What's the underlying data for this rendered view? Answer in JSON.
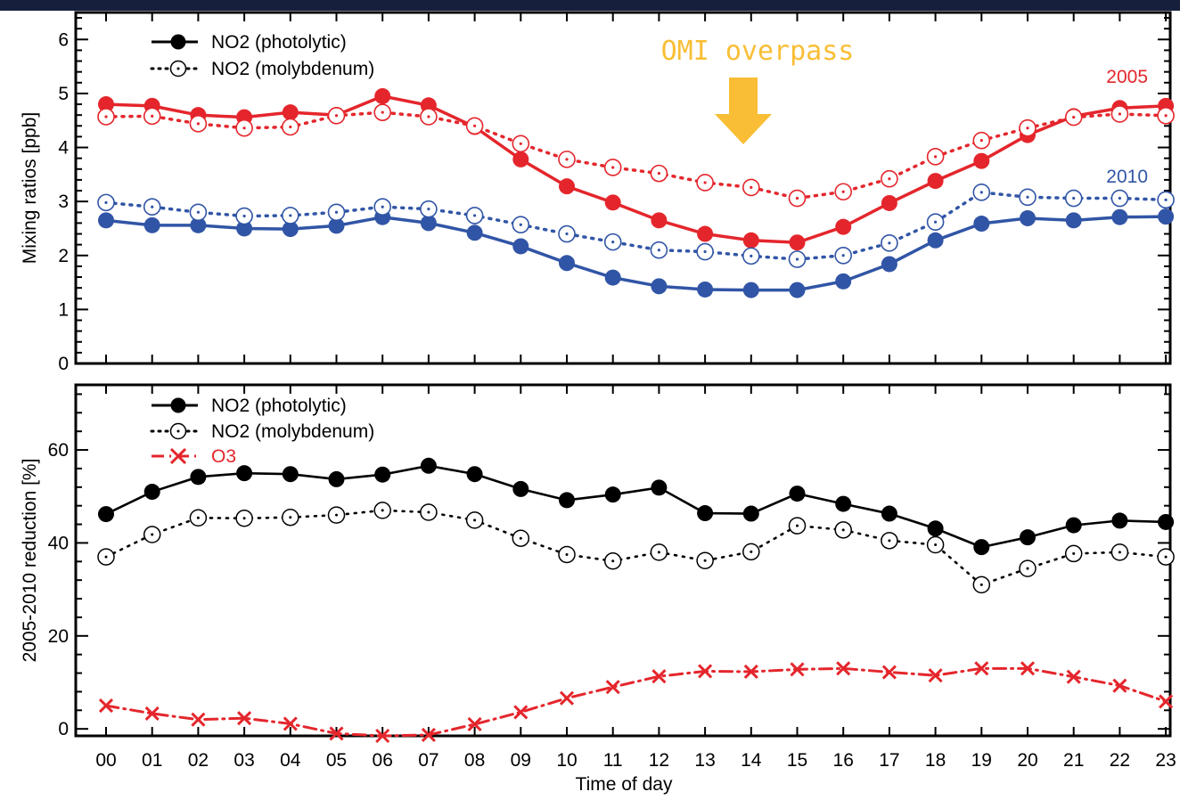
{
  "chart_data": [
    {
      "type": "line",
      "panel": "top",
      "ylabel": "Mixing ratios [ppb]",
      "ylim": [
        0,
        6.5
      ],
      "yticks": [
        0,
        1,
        2,
        3,
        4,
        5,
        6
      ],
      "x": [
        "00",
        "01",
        "02",
        "03",
        "04",
        "05",
        "06",
        "07",
        "08",
        "09",
        "10",
        "11",
        "12",
        "13",
        "14",
        "15",
        "16",
        "17",
        "18",
        "19",
        "20",
        "21",
        "22",
        "23"
      ],
      "legend": [
        "NO2 (photolytic)",
        "NO2 (molybdenum)"
      ],
      "legend_position": "top-left",
      "annotation": "OMI overpass",
      "annotation_color": "#f9be35",
      "series": [
        {
          "group": "2005",
          "method": "photolytic",
          "color": "#e4262c",
          "values": [
            4.8,
            4.77,
            4.6,
            4.56,
            4.65,
            4.6,
            4.95,
            4.78,
            4.38,
            3.78,
            3.28,
            2.98,
            2.65,
            2.4,
            2.28,
            2.24,
            2.53,
            2.97,
            3.38,
            3.75,
            4.23,
            4.58,
            4.73,
            4.77
          ]
        },
        {
          "group": "2005",
          "method": "molybdenum",
          "color": "#e4262c",
          "values": [
            4.57,
            4.58,
            4.44,
            4.36,
            4.38,
            4.59,
            4.65,
            4.57,
            4.4,
            4.07,
            3.78,
            3.63,
            3.52,
            3.35,
            3.26,
            3.06,
            3.18,
            3.42,
            3.83,
            4.13,
            4.36,
            4.56,
            4.62,
            4.59
          ]
        },
        {
          "group": "2010",
          "method": "photolytic",
          "color": "#3155a6",
          "values": [
            2.65,
            2.56,
            2.56,
            2.5,
            2.49,
            2.55,
            2.71,
            2.6,
            2.42,
            2.17,
            1.86,
            1.59,
            1.43,
            1.37,
            1.36,
            1.36,
            1.52,
            1.84,
            2.28,
            2.59,
            2.69,
            2.65,
            2.71,
            2.72
          ]
        },
        {
          "group": "2010",
          "method": "molybdenum",
          "color": "#3155a6",
          "values": [
            2.98,
            2.9,
            2.8,
            2.73,
            2.74,
            2.8,
            2.9,
            2.86,
            2.74,
            2.57,
            2.4,
            2.25,
            2.1,
            2.07,
            1.99,
            1.93,
            2.0,
            2.23,
            2.62,
            3.17,
            3.08,
            3.06,
            3.06,
            3.03
          ]
        }
      ],
      "labels": [
        {
          "text": "2005",
          "color": "#e4262c"
        },
        {
          "text": "2010",
          "color": "#3155a6"
        }
      ]
    },
    {
      "type": "line",
      "panel": "bottom",
      "ylabel": "2005-2010 reduction [%]",
      "xlabel": "Time of day",
      "ylim": [
        -1.5,
        74
      ],
      "yticks": [
        0,
        20,
        40,
        60
      ],
      "x": [
        "00",
        "01",
        "02",
        "03",
        "04",
        "05",
        "06",
        "07",
        "08",
        "09",
        "10",
        "11",
        "12",
        "13",
        "14",
        "15",
        "16",
        "17",
        "18",
        "19",
        "20",
        "21",
        "22",
        "23"
      ],
      "legend": [
        "NO2 (photolytic)",
        "NO2 (molybdenum)",
        "O3"
      ],
      "legend_position": "top-left",
      "series": [
        {
          "name": "NO2 (photolytic)",
          "color": "#000000",
          "values": [
            46.2,
            51,
            54.2,
            55,
            54.8,
            53.7,
            54.7,
            56.6,
            54.8,
            51.6,
            49.2,
            50.4,
            51.9,
            46.4,
            46.3,
            50.6,
            48.4,
            46.3,
            43.1,
            39.1,
            41.2,
            43.8,
            44.8,
            44.5
          ]
        },
        {
          "name": "NO2 (molybdenum)",
          "color": "#000000",
          "values": [
            37,
            41.8,
            45.4,
            45.3,
            45.5,
            46,
            47,
            46.6,
            44.9,
            41,
            37.5,
            36.1,
            38,
            36.2,
            38.1,
            43.7,
            42.8,
            40.5,
            39.6,
            31,
            34.5,
            37.7,
            38,
            37
          ]
        },
        {
          "name": "O3",
          "color": "#e4262c",
          "values": [
            5,
            3.3,
            2,
            2.3,
            1.1,
            -1,
            -1.5,
            -1.3,
            1,
            3.6,
            6.6,
            9,
            11.3,
            12.4,
            12.3,
            12.8,
            13,
            12.2,
            11.5,
            13,
            13,
            11.2,
            9.3,
            5.9
          ]
        }
      ]
    }
  ]
}
